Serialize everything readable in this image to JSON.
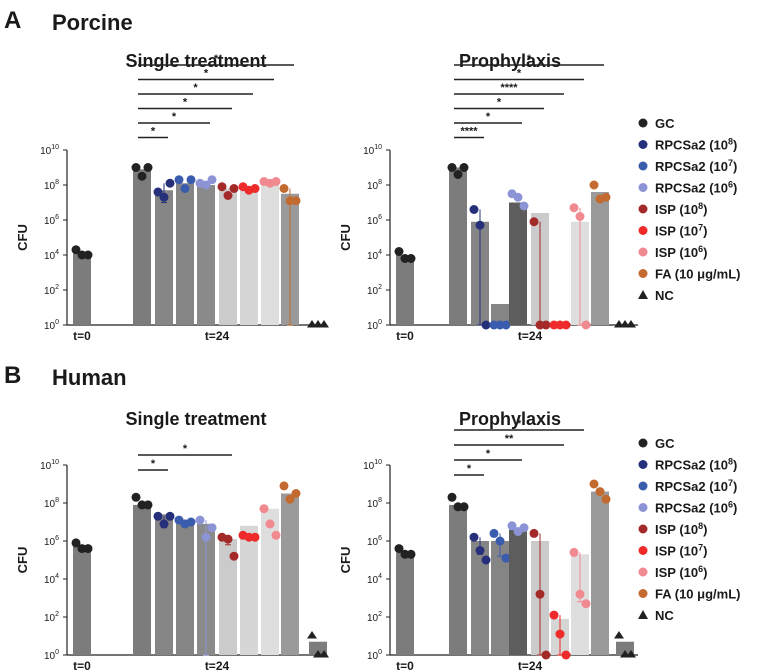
{
  "panels": [
    {
      "letter": "A",
      "title": "Porcine"
    },
    {
      "letter": "B",
      "title": "Human"
    }
  ],
  "legend": [
    {
      "label": "GC",
      "sup": "",
      "tail": "",
      "color": "#222222",
      "marker": "circle"
    },
    {
      "label": "RPCSa2 (10",
      "sup": "8",
      "tail": ")",
      "color": "#26307a",
      "marker": "circle"
    },
    {
      "label": "RPCSa2 (10",
      "sup": "7",
      "tail": ")",
      "color": "#3a5cae",
      "marker": "circle"
    },
    {
      "label": "RPCSa2 (10",
      "sup": "6",
      "tail": ")",
      "color": "#8c94d6",
      "marker": "circle"
    },
    {
      "label": "ISP (10",
      "sup": "8",
      "tail": ")",
      "color": "#a42a2a",
      "marker": "circle"
    },
    {
      "label": "ISP (10",
      "sup": "7",
      "tail": ")",
      "color": "#ee2a2a",
      "marker": "circle"
    },
    {
      "label": "ISP (10",
      "sup": "6",
      "tail": ")",
      "color": "#f08a90",
      "marker": "circle"
    },
    {
      "label": "FA (10 μg/mL)",
      "sup": "",
      "tail": "",
      "color": "#c26a30",
      "marker": "circle"
    },
    {
      "label": "NC",
      "sup": "",
      "tail": "",
      "color": "#222222",
      "marker": "triangle"
    }
  ],
  "chart_data": [
    {
      "type": "bar",
      "panel": "A",
      "title": "Single treatment",
      "ylabel": "CFU",
      "yscale": "log10",
      "ylim_exponent": [
        0,
        10
      ],
      "yticks": [
        {
          "base": "10",
          "exp": "0"
        },
        {
          "base": "10",
          "exp": "2"
        },
        {
          "base": "10",
          "exp": "4"
        },
        {
          "base": "10",
          "exp": "6"
        },
        {
          "base": "10",
          "exp": "8"
        },
        {
          "base": "10",
          "exp": "10"
        }
      ],
      "timepoints": [
        "t=0",
        "t=24"
      ],
      "groups": [
        "GC t=0",
        "GC",
        "RPCSa2 (10^8)",
        "RPCSa2 (10^7)",
        "RPCSa2 (10^6)",
        "ISP (10^8)",
        "ISP (10^7)",
        "ISP (10^6)",
        "FA (10 μg/mL)",
        "NC"
      ],
      "log10_means": [
        4.1,
        8.9,
        7.7,
        8.1,
        8.0,
        7.8,
        7.8,
        8.1,
        7.5,
        0
      ],
      "log10_points": [
        [
          4.3,
          4.0,
          4.0
        ],
        [
          9.0,
          8.5,
          9.0
        ],
        [
          7.6,
          7.3,
          8.1
        ],
        [
          8.3,
          7.8,
          8.3
        ],
        [
          8.1,
          8.0,
          8.3
        ],
        [
          7.9,
          7.4,
          7.8
        ],
        [
          7.9,
          7.7,
          7.8
        ],
        [
          8.2,
          8.1,
          8.2
        ],
        [
          7.8,
          7.1,
          7.1
        ],
        [
          0,
          0,
          0
        ]
      ],
      "log10_err_low": [
        null,
        null,
        7.0,
        null,
        null,
        null,
        null,
        null,
        0,
        null
      ],
      "significance": [
        {
          "from": "GC",
          "to": "RPCSa2 (10^8)",
          "label": "*"
        },
        {
          "from": "GC",
          "to": "RPCSa2 (10^6)",
          "label": "*"
        },
        {
          "from": "GC",
          "to": "ISP (10^8)",
          "label": "*"
        },
        {
          "from": "GC",
          "to": "ISP (10^7)",
          "label": "*"
        },
        {
          "from": "GC",
          "to": "ISP (10^6)",
          "label": "*"
        },
        {
          "from": "GC",
          "to": "FA (10 μg/mL)",
          "label": "*"
        }
      ]
    },
    {
      "type": "bar",
      "panel": "A",
      "title": "Prophylaxis",
      "ylabel": "CFU",
      "yscale": "log10",
      "ylim_exponent": [
        0,
        10
      ],
      "yticks": [
        {
          "base": "10",
          "exp": "0"
        },
        {
          "base": "10",
          "exp": "2"
        },
        {
          "base": "10",
          "exp": "4"
        },
        {
          "base": "10",
          "exp": "6"
        },
        {
          "base": "10",
          "exp": "8"
        },
        {
          "base": "10",
          "exp": "10"
        }
      ],
      "timepoints": [
        "t=0",
        "t=24"
      ],
      "groups": [
        "GC t=0",
        "GC",
        "RPCSa2 (10^8)",
        "RPCSa2 (10^7)",
        "RPCSa2 (10^6)",
        "ISP (10^8)",
        "ISP (10^7)",
        "ISP (10^6)",
        "FA (10 μg/mL)",
        "NC"
      ],
      "log10_means": [
        4.0,
        9.0,
        5.9,
        1.2,
        7.0,
        6.4,
        0,
        5.9,
        7.6,
        0
      ],
      "log10_points": [
        [
          4.2,
          3.8,
          3.8
        ],
        [
          9.0,
          8.6,
          9.0
        ],
        [
          6.6,
          5.7,
          0
        ],
        [
          0,
          0,
          0
        ],
        [
          7.5,
          7.3,
          6.8
        ],
        [
          5.9,
          0,
          0
        ],
        [
          0,
          0,
          0
        ],
        [
          6.7,
          6.2,
          0
        ],
        [
          8.0,
          7.2,
          7.3
        ],
        [
          0,
          0,
          0
        ]
      ],
      "log10_err_low": [
        null,
        null,
        0,
        0,
        null,
        0,
        null,
        0,
        null,
        null
      ],
      "significance": [
        {
          "from": "GC",
          "to": "RPCSa2 (10^8)",
          "label": "****"
        },
        {
          "from": "GC",
          "to": "RPCSa2 (10^6)",
          "label": "*"
        },
        {
          "from": "GC",
          "to": "ISP (10^8)",
          "label": "*"
        },
        {
          "from": "GC",
          "to": "ISP (10^7)",
          "label": "****"
        },
        {
          "from": "GC",
          "to": "ISP (10^6)",
          "label": "*"
        },
        {
          "from": "GC",
          "to": "FA (10 μg/mL)",
          "label": "*"
        }
      ]
    },
    {
      "type": "bar",
      "panel": "B",
      "title": "Single treatment",
      "ylabel": "CFU",
      "yscale": "log10",
      "ylim_exponent": [
        0,
        10
      ],
      "yticks": [
        {
          "base": "10",
          "exp": "0"
        },
        {
          "base": "10",
          "exp": "2"
        },
        {
          "base": "10",
          "exp": "4"
        },
        {
          "base": "10",
          "exp": "6"
        },
        {
          "base": "10",
          "exp": "8"
        },
        {
          "base": "10",
          "exp": "10"
        }
      ],
      "timepoints": [
        "t=0",
        "t=24"
      ],
      "groups": [
        "GC t=0",
        "GC",
        "RPCSa2 (10^8)",
        "RPCSa2 (10^7)",
        "RPCSa2 (10^6)",
        "ISP (10^8)",
        "ISP (10^7)",
        "ISP (10^6)",
        "FA (10 μg/mL)",
        "NC"
      ],
      "log10_means": [
        5.7,
        7.9,
        7.4,
        7.0,
        6.9,
        6.1,
        6.8,
        7.7,
        8.5,
        0.7
      ],
      "log10_points": [
        [
          5.9,
          5.6,
          5.6
        ],
        [
          8.3,
          7.9,
          7.9
        ],
        [
          7.3,
          6.9,
          7.3
        ],
        [
          7.1,
          6.9,
          7.0
        ],
        [
          7.1,
          6.2,
          6.7
        ],
        [
          6.2,
          6.1,
          5.2
        ],
        [
          6.3,
          6.2,
          6.2
        ],
        [
          7.7,
          6.9,
          6.3
        ],
        [
          8.9,
          8.2,
          8.5
        ],
        [
          1.0,
          0,
          0
        ]
      ],
      "log10_err_low": [
        null,
        null,
        6.7,
        null,
        0,
        5.8,
        null,
        null,
        null,
        null
      ],
      "significance": [
        {
          "from": "GC",
          "to": "RPCSa2 (10^8)",
          "label": "*"
        },
        {
          "from": "GC",
          "to": "ISP (10^8)",
          "label": "*"
        }
      ]
    },
    {
      "type": "bar",
      "panel": "B",
      "title": "Prophylaxis",
      "ylabel": "CFU",
      "yscale": "log10",
      "ylim_exponent": [
        0,
        10
      ],
      "yticks": [
        {
          "base": "10",
          "exp": "0"
        },
        {
          "base": "10",
          "exp": "2"
        },
        {
          "base": "10",
          "exp": "4"
        },
        {
          "base": "10",
          "exp": "6"
        },
        {
          "base": "10",
          "exp": "8"
        },
        {
          "base": "10",
          "exp": "10"
        }
      ],
      "timepoints": [
        "t=0",
        "t=24"
      ],
      "groups": [
        "GC t=0",
        "GC",
        "RPCSa2 (10^8)",
        "RPCSa2 (10^7)",
        "RPCSa2 (10^6)",
        "ISP (10^8)",
        "ISP (10^7)",
        "ISP (10^6)",
        "FA (10 μg/mL)",
        "NC"
      ],
      "log10_means": [
        5.4,
        7.9,
        6.0,
        6.0,
        6.6,
        6.0,
        1.9,
        5.3,
        8.6,
        0.7
      ],
      "log10_points": [
        [
          5.6,
          5.3,
          5.3
        ],
        [
          8.3,
          7.8,
          7.8
        ],
        [
          6.2,
          5.5,
          5.0
        ],
        [
          6.4,
          6.0,
          5.1
        ],
        [
          6.8,
          6.5,
          6.7
        ],
        [
          6.4,
          3.2,
          0
        ],
        [
          2.1,
          1.1,
          0
        ],
        [
          5.4,
          3.2,
          2.7
        ],
        [
          9.0,
          8.6,
          8.2
        ],
        [
          1.0,
          0,
          0
        ]
      ],
      "log10_err_low": [
        null,
        null,
        5.3,
        5.2,
        null,
        0,
        0,
        2.8,
        null,
        null
      ],
      "significance": [
        {
          "from": "GC",
          "to": "RPCSa2 (10^8)",
          "label": "*"
        },
        {
          "from": "GC",
          "to": "RPCSa2 (10^6)",
          "label": "*"
        },
        {
          "from": "GC",
          "to": "ISP (10^7)",
          "label": "**"
        },
        {
          "from": "GC",
          "to": "ISP (10^6)",
          "label": "*"
        }
      ]
    }
  ]
}
